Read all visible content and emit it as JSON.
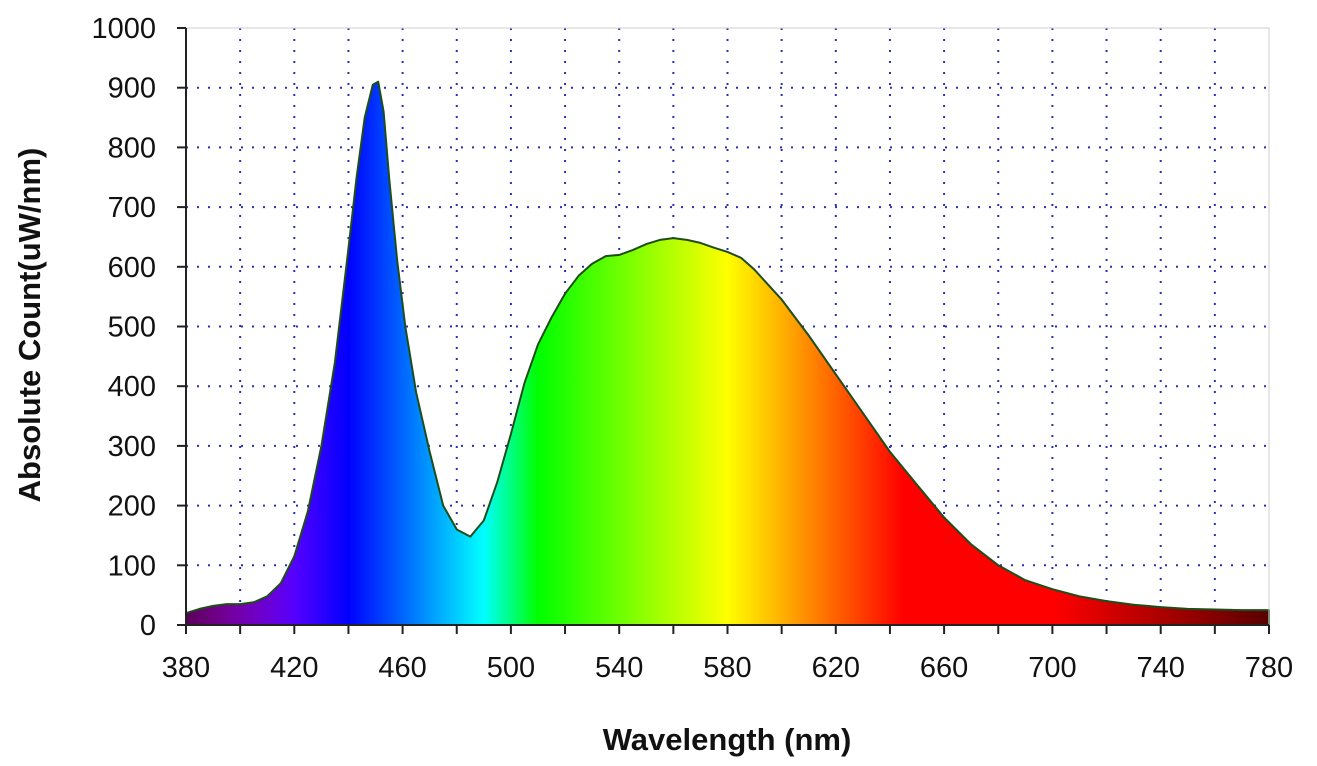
{
  "chart_data": {
    "type": "area",
    "title": "",
    "xlabel": "Wavelength (nm)",
    "ylabel": "Absolute Count(uW/nm)",
    "xlim": [
      380,
      780
    ],
    "ylim": [
      0,
      1000
    ],
    "x_ticks": [
      380,
      420,
      460,
      500,
      540,
      580,
      620,
      660,
      700,
      740,
      780
    ],
    "y_ticks": [
      0,
      100,
      200,
      300,
      400,
      500,
      600,
      700,
      800,
      900,
      1000
    ],
    "grid": true,
    "legend": "none",
    "fill": "visible-spectrum",
    "series": [
      {
        "x": [
          380,
          385,
          390,
          395,
          400,
          405,
          410,
          415,
          420,
          425,
          430,
          435,
          440,
          443,
          446,
          449,
          451,
          453,
          455,
          458,
          461,
          465,
          470,
          475,
          480,
          485,
          490,
          495,
          500,
          505,
          510,
          515,
          520,
          525,
          530,
          535,
          540,
          545,
          550,
          555,
          560,
          565,
          570,
          575,
          580,
          585,
          590,
          595,
          600,
          610,
          620,
          630,
          640,
          650,
          660,
          670,
          680,
          690,
          700,
          710,
          720,
          730,
          740,
          750,
          760,
          770,
          780
        ],
        "values": [
          20,
          27,
          32,
          35,
          35,
          38,
          48,
          70,
          115,
          190,
          300,
          440,
          630,
          750,
          850,
          905,
          910,
          860,
          750,
          610,
          500,
          390,
          290,
          200,
          160,
          148,
          175,
          240,
          320,
          405,
          470,
          515,
          555,
          585,
          605,
          618,
          620,
          628,
          638,
          645,
          648,
          645,
          640,
          632,
          625,
          615,
          595,
          570,
          545,
          485,
          420,
          355,
          290,
          235,
          180,
          135,
          100,
          75,
          60,
          48,
          40,
          34,
          30,
          27,
          26,
          25,
          25
        ]
      }
    ],
    "colors": {
      "outline": "#1f4d1a",
      "grid_dots": "#2b2fb8",
      "axis": "#222222"
    }
  }
}
